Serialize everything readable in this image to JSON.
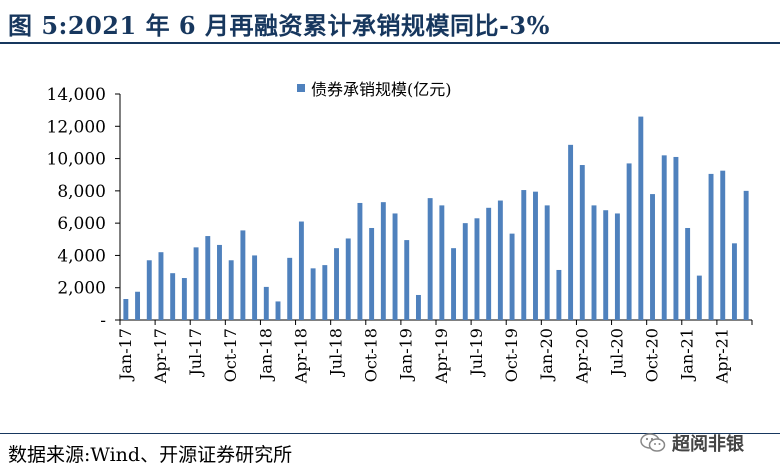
{
  "figure": {
    "title": "图 5:2021 年 6 月再融资累计承销规模同比-3%",
    "source": "数据来源:Wind、开源证券研究所",
    "watermark": "超阅非银"
  },
  "colors": {
    "bar": "#4f81bd",
    "title": "#17375e",
    "axis": "#000000"
  },
  "chart_data": {
    "type": "bar",
    "title": "",
    "xlabel": "",
    "ylabel": "",
    "ylim": [
      0,
      14000
    ],
    "yticks": [
      {
        "v": 0,
        "label": "-"
      },
      {
        "v": 2000,
        "label": "2,000"
      },
      {
        "v": 4000,
        "label": "4,000"
      },
      {
        "v": 6000,
        "label": "6,000"
      },
      {
        "v": 8000,
        "label": "8,000"
      },
      {
        "v": 10000,
        "label": "10,000"
      },
      {
        "v": 12000,
        "label": "12,000"
      },
      {
        "v": 14000,
        "label": "14,000"
      }
    ],
    "legend": {
      "position": "top-center"
    },
    "grid": false,
    "categories": [
      "Jan-17",
      "Feb-17",
      "Mar-17",
      "Apr-17",
      "May-17",
      "Jun-17",
      "Jul-17",
      "Aug-17",
      "Sep-17",
      "Oct-17",
      "Nov-17",
      "Dec-17",
      "Jan-18",
      "Feb-18",
      "Mar-18",
      "Apr-18",
      "May-18",
      "Jun-18",
      "Jul-18",
      "Aug-18",
      "Sep-18",
      "Oct-18",
      "Nov-18",
      "Dec-18",
      "Jan-19",
      "Feb-19",
      "Mar-19",
      "Apr-19",
      "May-19",
      "Jun-19",
      "Jul-19",
      "Aug-19",
      "Sep-19",
      "Oct-19",
      "Nov-19",
      "Dec-19",
      "Jan-20",
      "Feb-20",
      "Mar-20",
      "Apr-20",
      "May-20",
      "Jun-20",
      "Jul-20",
      "Aug-20",
      "Sep-20",
      "Oct-20",
      "Nov-20",
      "Dec-20",
      "Jan-21",
      "Feb-21",
      "Mar-21",
      "Apr-21",
      "May-21",
      "Jun-21"
    ],
    "tick_labels": [
      "Jan-17",
      "Apr-17",
      "Jul-17",
      "Oct-17",
      "Jan-18",
      "Apr-18",
      "Jul-18",
      "Oct-18",
      "Jan-19",
      "Apr-19",
      "Jul-19",
      "Oct-19",
      "Jan-20",
      "Apr-20",
      "Jul-20",
      "Oct-20",
      "Jan-21",
      "Apr-21"
    ],
    "series": [
      {
        "name": "债券承销规模(亿元)",
        "values": [
          1300,
          1750,
          3700,
          4200,
          2900,
          2600,
          4500,
          5200,
          4650,
          3700,
          5550,
          4000,
          2050,
          1150,
          3850,
          6100,
          3200,
          3400,
          4450,
          5050,
          7250,
          5700,
          7300,
          6600,
          4950,
          1550,
          7550,
          7100,
          4450,
          6000,
          6300,
          6950,
          7400,
          5350,
          8050,
          7950,
          7100,
          3100,
          10850,
          9600,
          7100,
          6800,
          6600,
          9700,
          12600,
          7800,
          10200,
          10100,
          5700,
          2750,
          9050,
          9250,
          4750,
          8000
        ]
      }
    ]
  }
}
